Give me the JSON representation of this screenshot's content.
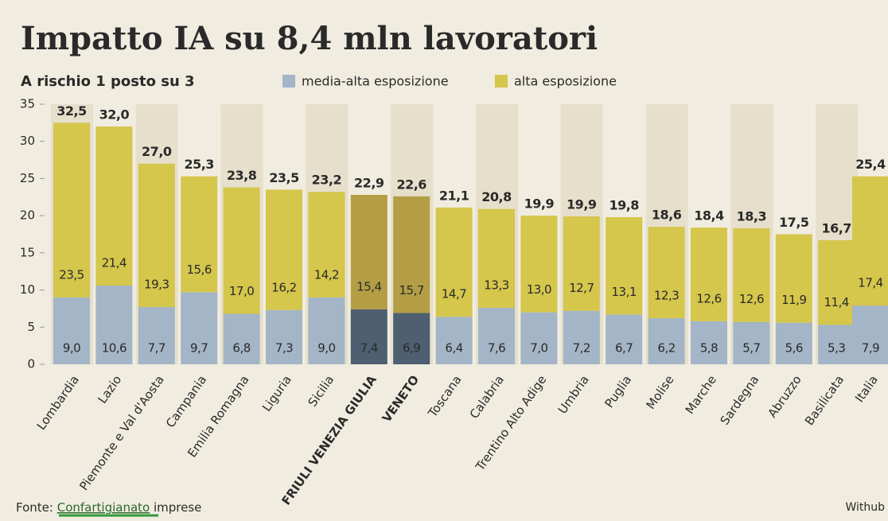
{
  "chart_data": {
    "type": "stacked_bar",
    "title": "Impatto IA su 8,4 mln lavoratori",
    "subtitle": "A rischio 1 posto su 3",
    "categories": [
      "Lombardia",
      "Lazio",
      "Piemonte e Val d'Aosta",
      "Campania",
      "Emilia Romagna",
      "Liguria",
      "Sicilia",
      "FRIULI VENEZIA GIULIA",
      "VENETO",
      "Toscana",
      "Calabria",
      "Trentino Alto Adige",
      "Umbria",
      "Puglia",
      "Molise",
      "Marche",
      "Sardegna",
      "Abruzzo",
      "Basilicata",
      "Italia"
    ],
    "series": [
      {
        "name": "media-alta esposizione",
        "color": "#a3b5c6",
        "highlight_color": "#4d5f70",
        "values": [
          9.0,
          10.6,
          7.7,
          9.7,
          6.8,
          7.3,
          9.0,
          7.4,
          6.9,
          6.4,
          7.6,
          7.0,
          7.2,
          6.7,
          6.2,
          5.8,
          5.7,
          5.6,
          5.3,
          7.9
        ],
        "value_labels": [
          "9,0",
          "10,6",
          "7,7",
          "9,7",
          "6,8",
          "7,3",
          "9,0",
          "7,4",
          "6,9",
          "6,4",
          "7,6",
          "7,0",
          "7,2",
          "6,7",
          "6,2",
          "5,8",
          "5,7",
          "5,6",
          "5,3",
          "7,9"
        ]
      },
      {
        "name": "alta esposizione",
        "color": "#d5c64c",
        "highlight_color": "#b39e45",
        "values": [
          23.5,
          21.4,
          19.3,
          15.6,
          17.0,
          16.2,
          14.2,
          15.4,
          15.7,
          14.7,
          13.3,
          13.0,
          12.7,
          13.1,
          12.3,
          12.6,
          12.6,
          11.9,
          11.4,
          17.4
        ],
        "value_labels": [
          "23,5",
          "21,4",
          "19,3",
          "15,6",
          "17,0",
          "16,2",
          "14,2",
          "15,4",
          "15,7",
          "14,7",
          "13,3",
          "13,0",
          "12,7",
          "13,1",
          "12,3",
          "12,6",
          "12,6",
          "11,9",
          "11,4",
          "17,4"
        ]
      }
    ],
    "totals": {
      "values": [
        32.5,
        32.0,
        27.0,
        25.3,
        23.8,
        23.5,
        23.2,
        22.9,
        22.6,
        21.1,
        20.8,
        19.9,
        19.9,
        19.8,
        18.6,
        18.4,
        18.3,
        17.5,
        16.7,
        25.4
      ],
      "value_labels": [
        "32,5",
        "32,0",
        "27,0",
        "25,3",
        "23,8",
        "23,5",
        "23,2",
        "22,9",
        "22,6",
        "21,1",
        "20,8",
        "19,9",
        "19,9",
        "19,8",
        "18,6",
        "18,4",
        "18,3",
        "17,5",
        "16,7",
        "25,4"
      ]
    },
    "highlight_indices": [
      7,
      8
    ],
    "ylim": [
      0,
      35
    ],
    "yticks": [
      0,
      5,
      10,
      15,
      20,
      25,
      30,
      35
    ],
    "source": {
      "prefix": "Fonte:",
      "name": "Confartigianato",
      "suffix": "imprese"
    },
    "credit": "Withub"
  }
}
